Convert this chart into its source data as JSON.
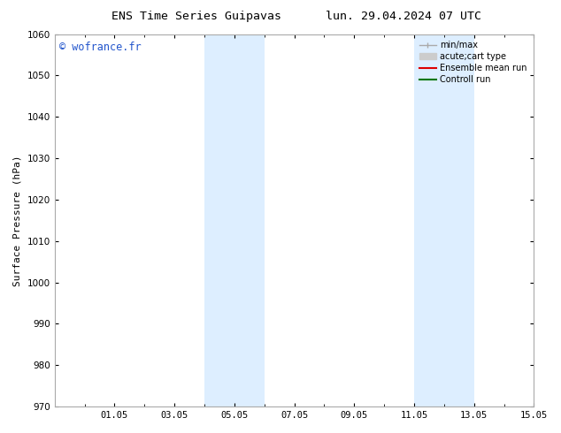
{
  "title_left": "ENS Time Series Guipavas",
  "title_right": "lun. 29.04.2024 07 UTC",
  "ylabel": "Surface Pressure (hPa)",
  "ylim": [
    970,
    1060
  ],
  "yticks": [
    970,
    980,
    990,
    1000,
    1010,
    1020,
    1030,
    1040,
    1050,
    1060
  ],
  "xtick_labels": [
    "01.05",
    "03.05",
    "05.05",
    "07.05",
    "09.05",
    "11.05",
    "13.05",
    "15.05"
  ],
  "xtick_positions": [
    2,
    4,
    6,
    8,
    10,
    12,
    14,
    16
  ],
  "xlim": [
    0,
    16
  ],
  "shaded_regions": [
    {
      "xmin": 5.0,
      "xmax": 7.0
    },
    {
      "xmin": 12.0,
      "xmax": 14.0
    }
  ],
  "shaded_color": "#ddeeff",
  "watermark": "© wofrance.fr",
  "watermark_color": "#2255cc",
  "legend_entries": [
    {
      "label": "min/max",
      "color": "#aaaaaa"
    },
    {
      "label": "acute;cart type",
      "color": "#cccccc"
    },
    {
      "label": "Ensemble mean run",
      "color": "#dd0000"
    },
    {
      "label": "Controll run",
      "color": "#007700"
    }
  ],
  "bg_color": "#ffffff",
  "spine_color": "#aaaaaa",
  "title_fontsize": 9.5,
  "label_fontsize": 8,
  "tick_fontsize": 7.5,
  "legend_fontsize": 7,
  "watermark_fontsize": 8.5
}
